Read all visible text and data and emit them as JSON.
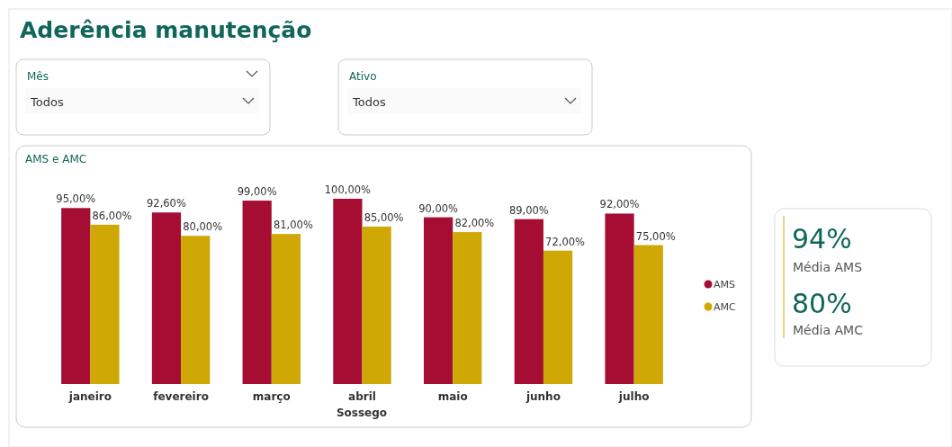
{
  "chart_data": [
    {
      "type": "other",
      "title": "Aderência manutenção",
      "annotations": [
        "Mês",
        "Todos",
        "Ativo",
        "Todos"
      ]
    },
    {
      "type": "bar",
      "title": "AMS e AMC",
      "xlabel": "Sossego",
      "categories": [
        "janeiro",
        "fevereiro",
        "março",
        "abril",
        "maio",
        "junho",
        "julho"
      ],
      "legend": "right",
      "series": [
        {
          "name": "AMS",
          "color": "#a50d33",
          "values": [
            95,
            92.6,
            99,
            100,
            90,
            89,
            92
          ],
          "value_labels": [
            "95,00%",
            "92,60%",
            "99,00%",
            "100,00%",
            "90,00%",
            "89,00%",
            "92,00%"
          ]
        },
        {
          "name": "AMC",
          "color": "#cfa806",
          "values": [
            86,
            80,
            81,
            85,
            82,
            72,
            75
          ],
          "value_labels": [
            "86,00%",
            "80,00%",
            "81,00%",
            "85,00%",
            "82,00%",
            "72,00%",
            "75,00%"
          ]
        }
      ]
    },
    {
      "type": "other",
      "annotations": [
        "94%",
        "Média AMS",
        "80%",
        "Média AMC"
      ]
    }
  ]
}
